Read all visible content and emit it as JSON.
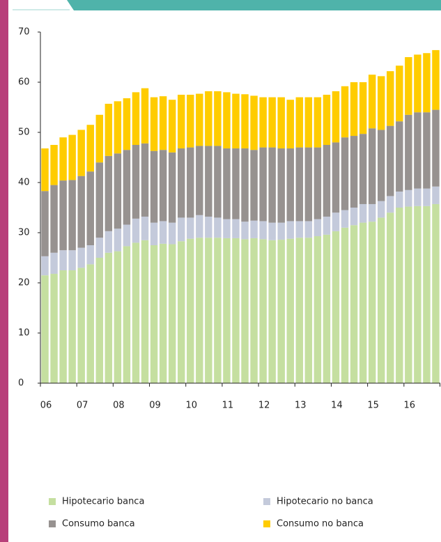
{
  "chart_data": {
    "type": "stacked_bar",
    "categories": [
      "06",
      null,
      null,
      null,
      "07",
      null,
      null,
      null,
      "08",
      null,
      null,
      null,
      "09",
      null,
      null,
      null,
      "10",
      null,
      null,
      null,
      "11",
      null,
      null,
      null,
      "12",
      null,
      null,
      null,
      "13",
      null,
      null,
      null,
      "14",
      null,
      null,
      null,
      "15",
      null,
      null,
      null,
      "16",
      null,
      null,
      null
    ],
    "series": [
      {
        "name": "Hipotecario banca",
        "color": "#c5dfa0",
        "values": [
          21.5,
          21.8,
          22.5,
          22.5,
          23.0,
          23.7,
          25.0,
          26.0,
          26.3,
          27.3,
          28.0,
          28.5,
          27.5,
          27.8,
          27.7,
          28.3,
          28.8,
          29.0,
          29.0,
          29.0,
          28.9,
          28.9,
          28.7,
          28.9,
          28.7,
          28.5,
          28.6,
          28.8,
          29.0,
          29.0,
          29.3,
          29.6,
          30.3,
          31.0,
          31.5,
          32.0,
          32.2,
          33.0,
          34.0,
          35.0,
          35.2,
          35.3,
          35.3,
          35.7
        ]
      },
      {
        "name": "Hipotecario no banca",
        "color": "#c4cadb",
        "values": [
          3.8,
          4.2,
          4.0,
          4.0,
          4.0,
          3.8,
          4.0,
          4.3,
          4.5,
          4.3,
          4.8,
          4.7,
          4.5,
          4.5,
          4.3,
          4.7,
          4.2,
          4.5,
          4.2,
          4.0,
          3.8,
          3.8,
          3.5,
          3.5,
          3.6,
          3.5,
          3.4,
          3.5,
          3.3,
          3.3,
          3.4,
          3.6,
          3.7,
          3.5,
          3.5,
          3.7,
          3.5,
          3.3,
          3.3,
          3.2,
          3.3,
          3.5,
          3.5,
          3.5
        ]
      },
      {
        "name": "Consumo banca",
        "color": "#979290",
        "values": [
          13.0,
          13.5,
          13.9,
          14.0,
          14.3,
          14.7,
          15.0,
          15.0,
          15.0,
          14.9,
          14.7,
          14.6,
          14.3,
          14.2,
          14.0,
          13.8,
          14.0,
          13.8,
          14.1,
          14.3,
          14.1,
          14.1,
          14.6,
          14.1,
          14.7,
          15.0,
          14.8,
          14.5,
          14.7,
          14.7,
          14.3,
          14.3,
          14.0,
          14.5,
          14.3,
          14.0,
          15.1,
          14.2,
          14.0,
          14.0,
          15.0,
          15.2,
          15.2,
          15.3
        ]
      },
      {
        "name": "Consumo no banca",
        "color": "#ffcc00",
        "values": [
          8.5,
          8.0,
          8.6,
          9.0,
          9.2,
          9.3,
          9.5,
          10.4,
          10.4,
          10.3,
          10.5,
          11.0,
          10.7,
          10.7,
          10.5,
          10.7,
          10.5,
          10.4,
          10.9,
          10.9,
          11.2,
          10.9,
          10.8,
          10.8,
          10.0,
          10.0,
          10.2,
          9.7,
          10.0,
          10.0,
          10.0,
          10.0,
          10.2,
          10.2,
          10.7,
          10.3,
          10.7,
          10.7,
          10.9,
          11.1,
          11.5,
          11.5,
          11.8,
          11.9
        ]
      }
    ],
    "ylim": [
      0,
      70
    ],
    "yticks": [
      0,
      10,
      20,
      30,
      40,
      50,
      60,
      70
    ],
    "grid": false
  }
}
